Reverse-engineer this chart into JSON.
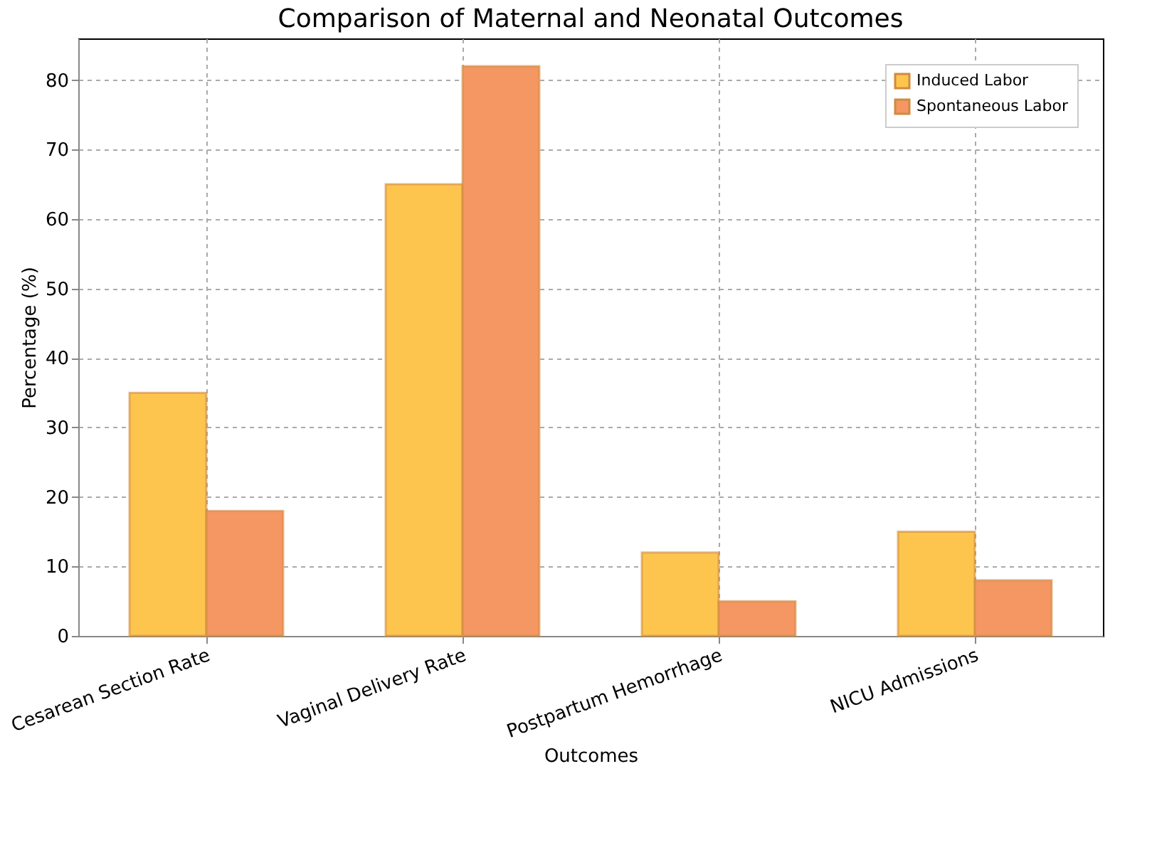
{
  "chart_data": {
    "type": "bar",
    "title": "Comparison of Maternal and Neonatal Outcomes",
    "xlabel": "Outcomes",
    "ylabel": "Percentage (%)",
    "categories": [
      "Cesarean Section Rate",
      "Vaginal Delivery Rate",
      "Postpartum Hemorrhage",
      "NICU Admissions"
    ],
    "series": [
      {
        "name": "Induced Labor",
        "color": "#fdc54e",
        "values": [
          35,
          65,
          12,
          15
        ]
      },
      {
        "name": "Spontaneous Labor",
        "color": "#f49762",
        "values": [
          18,
          82,
          5,
          8
        ]
      }
    ],
    "ylim": [
      0,
      86
    ],
    "yticks": [
      0,
      10,
      20,
      30,
      40,
      50,
      60,
      70,
      80
    ],
    "grid": true,
    "legend": "top right"
  }
}
